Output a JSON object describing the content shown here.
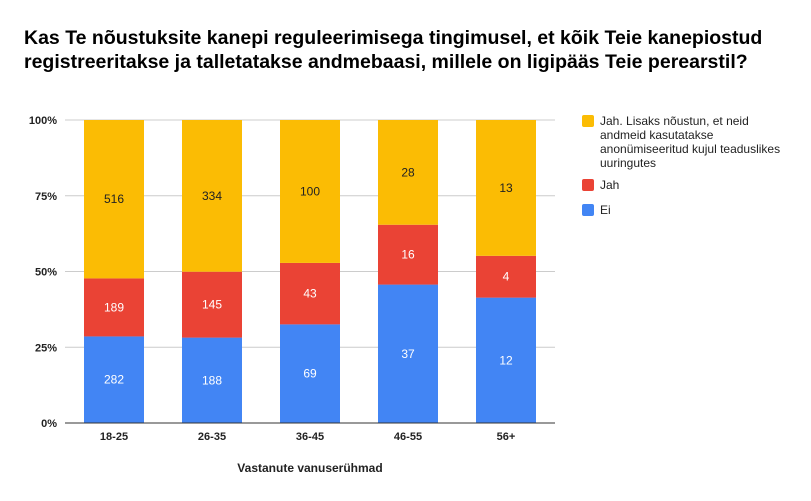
{
  "chart_data": {
    "type": "bar",
    "stacked": "percent",
    "title": "Kas Te nõustuksite kanepi reguleerimisega tingimusel, et kõik Teie kanepiostud registreeritakse ja talletatakse andmebaasi, millele on ligipääs Teie perearstil?",
    "xlabel": "Vastanute vanuserühmad",
    "ylabel": "",
    "categories": [
      "18-25",
      "26-35",
      "36-45",
      "46-55",
      "56+"
    ],
    "yticks": [
      "0%",
      "25%",
      "50%",
      "75%",
      "100%"
    ],
    "ylim": [
      0,
      100
    ],
    "grid": true,
    "legend_position": "right",
    "series": [
      {
        "name": "Ei",
        "color": "#4285F4",
        "values": [
          282,
          188,
          69,
          37,
          12
        ]
      },
      {
        "name": "Jah",
        "color": "#EA4335",
        "values": [
          189,
          145,
          43,
          16,
          4
        ]
      },
      {
        "name": "Jah. Lisaks nõustun, et neid andmeid kasutatakse anonümiseeritud kujul teaduslikes uuringutes",
        "color": "#FBBC04",
        "values": [
          516,
          334,
          100,
          28,
          13
        ]
      }
    ]
  }
}
